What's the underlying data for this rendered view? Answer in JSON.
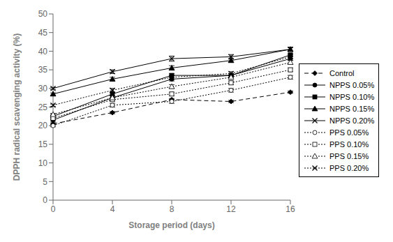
{
  "chart_data": {
    "type": "line",
    "xlabel": "Storage period (days)",
    "ylabel": "DPPH radical scavenging activity (%)",
    "x": [
      0,
      4,
      8,
      12,
      16
    ],
    "xlim": [
      0,
      16
    ],
    "xticks": [
      0,
      4,
      8,
      12,
      16
    ],
    "ylim": [
      0,
      50
    ],
    "yticks": [
      0,
      5,
      10,
      15,
      20,
      25,
      30,
      35,
      40,
      45,
      50
    ],
    "grid": false,
    "legend": "right",
    "series": [
      {
        "name": "Control",
        "values": [
          20.5,
          23.5,
          27.0,
          26.5,
          29.0
        ],
        "yerr": [
          0.3,
          0.3,
          0.3,
          0.3,
          0.3
        ],
        "color": "#000000",
        "marker": "diamond",
        "line_style": "dashed"
      },
      {
        "name": "NPPS 0.05%",
        "values": [
          21.5,
          27.5,
          32.5,
          33.5,
          38.0
        ],
        "yerr": [
          0.3,
          0.5,
          0.5,
          0.5,
          0.5
        ],
        "color": "#000000",
        "marker": "circle",
        "line_style": "solid"
      },
      {
        "name": "NPPS 0.10%",
        "values": [
          22.5,
          28.5,
          33.5,
          33.5,
          39.0
        ],
        "yerr": [
          0.3,
          0.5,
          0.5,
          0.5,
          0.4
        ],
        "color": "#000000",
        "marker": "square",
        "line_style": "solid"
      },
      {
        "name": "NPPS 0.15%",
        "values": [
          28.5,
          32.5,
          35.5,
          37.5,
          40.5
        ],
        "yerr": [
          0.3,
          0.5,
          0.6,
          0.5,
          0.5
        ],
        "color": "#000000",
        "marker": "triangle",
        "line_style": "solid"
      },
      {
        "name": "NPPS 0.20%",
        "values": [
          30.0,
          34.5,
          38.0,
          38.5,
          40.5
        ],
        "yerr": [
          0.3,
          0.5,
          0.7,
          0.6,
          0.6
        ],
        "color": "#000000",
        "marker": "x",
        "line_style": "solid"
      },
      {
        "name": "PPS 0.05%",
        "values": [
          20.0,
          25.5,
          26.5,
          29.5,
          33.0
        ],
        "yerr": [
          0.3,
          0.5,
          0.5,
          0.5,
          0.5
        ],
        "color": "#000000",
        "marker": "circle-open",
        "line_style": "dotted"
      },
      {
        "name": "PPS 0.10%",
        "values": [
          22.0,
          27.0,
          28.5,
          31.5,
          35.0
        ],
        "yerr": [
          0.3,
          0.4,
          0.5,
          0.5,
          0.5
        ],
        "color": "#000000",
        "marker": "square-open",
        "line_style": "dotted"
      },
      {
        "name": "PPS 0.15%",
        "values": [
          23.0,
          27.5,
          30.5,
          33.0,
          37.0
        ],
        "yerr": [
          0.3,
          0.5,
          0.5,
          0.5,
          0.5
        ],
        "color": "#000000",
        "marker": "triangle-open",
        "line_style": "dotted"
      },
      {
        "name": "PPS 0.20%",
        "values": [
          25.5,
          29.5,
          33.0,
          34.0,
          38.5
        ],
        "yerr": [
          0.3,
          0.5,
          0.5,
          0.5,
          0.5
        ],
        "color": "#000000",
        "marker": "x",
        "line_style": "dotted"
      }
    ]
  }
}
